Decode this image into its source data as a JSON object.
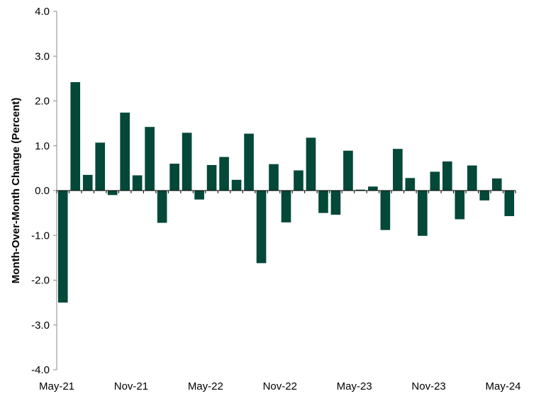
{
  "chart_data": {
    "type": "bar",
    "title": "",
    "xlabel": "",
    "ylabel": "Month-Over-Month Change (Percent)",
    "ylim": [
      -4.0,
      4.0
    ],
    "y_ticks": [
      "-4.0",
      "-3.0",
      "-2.0",
      "-1.0",
      "0.0",
      "1.0",
      "2.0",
      "3.0",
      "4.0"
    ],
    "x_tick_labels": [
      "May-21",
      "Nov-21",
      "May-22",
      "Nov-22",
      "May-23",
      "Nov-23",
      "May-24"
    ],
    "categories": [
      "May-21",
      "Jun-21",
      "Jul-21",
      "Aug-21",
      "Sep-21",
      "Oct-21",
      "Nov-21",
      "Dec-21",
      "Jan-22",
      "Feb-22",
      "Mar-22",
      "Apr-22",
      "May-22",
      "Jun-22",
      "Jul-22",
      "Aug-22",
      "Sep-22",
      "Oct-22",
      "Nov-22",
      "Dec-22",
      "Jan-23",
      "Feb-23",
      "Mar-23",
      "Apr-23",
      "May-23",
      "Jun-23",
      "Jul-23",
      "Aug-23",
      "Sep-23",
      "Oct-23",
      "Nov-23",
      "Dec-23",
      "Jan-24",
      "Feb-24",
      "Mar-24",
      "Apr-24",
      "May-24"
    ],
    "values": [
      -2.5,
      2.42,
      0.35,
      1.07,
      -0.1,
      1.74,
      0.34,
      1.42,
      -0.72,
      0.6,
      1.29,
      -0.2,
      0.57,
      0.75,
      0.24,
      1.27,
      -1.62,
      0.59,
      -0.71,
      0.45,
      1.18,
      -0.5,
      -0.54,
      0.89,
      0.02,
      0.09,
      -0.88,
      0.93,
      0.28,
      -1.01,
      0.42,
      0.65,
      -0.64,
      0.56,
      -0.22,
      0.27,
      -0.57
    ],
    "bar_color": "#034838",
    "grid": false
  }
}
